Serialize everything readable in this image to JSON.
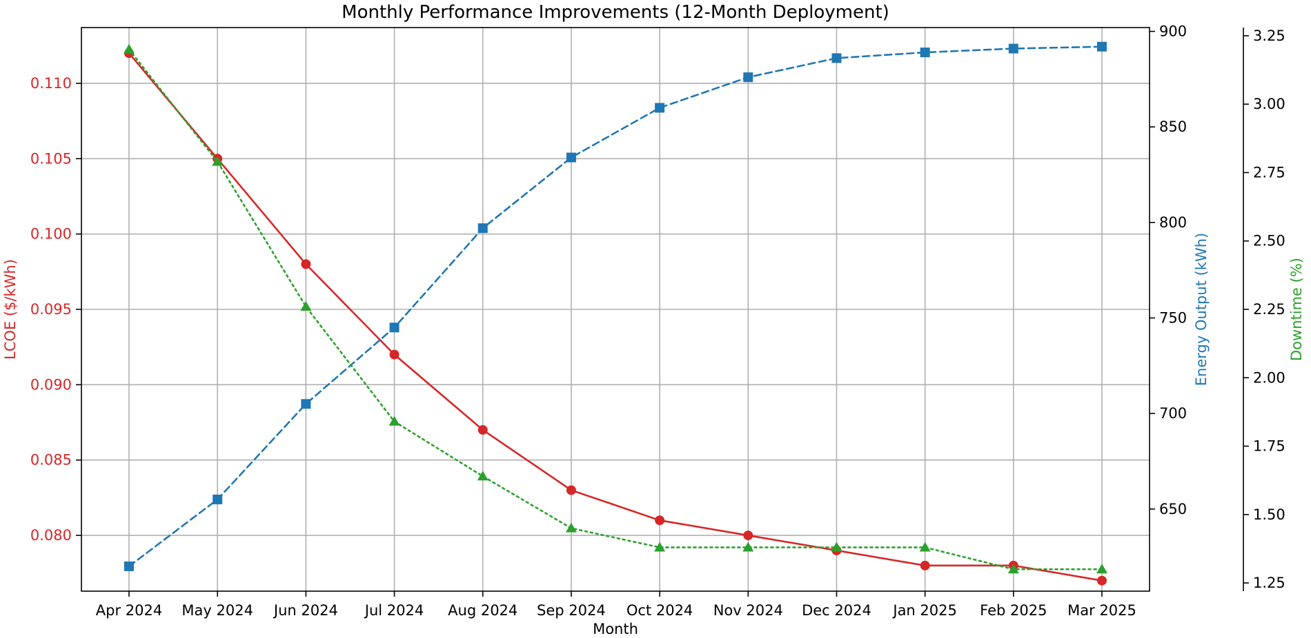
{
  "chart_data": {
    "type": "line",
    "title": "Monthly Performance Improvements (12-Month Deployment)",
    "xlabel": "Month",
    "categories": [
      "Apr 2024",
      "May 2024",
      "Jun 2024",
      "Jul 2024",
      "Aug 2024",
      "Sep 2024",
      "Oct 2024",
      "Nov 2024",
      "Dec 2024",
      "Jan 2025",
      "Feb 2025",
      "Mar 2025"
    ],
    "grid": true,
    "axes": {
      "left": {
        "label": "LCOE ($/kWh)",
        "color": "#d62728",
        "range": [
          0.0763,
          0.1137
        ],
        "ticks": [
          0.08,
          0.085,
          0.09,
          0.095,
          0.1,
          0.105,
          0.11
        ],
        "tick_labels": [
          "0.080",
          "0.085",
          "0.090",
          "0.095",
          "0.100",
          "0.105",
          "0.110"
        ]
      },
      "right1": {
        "label": "Energy Output (kWh)",
        "color": "#1f77b4",
        "range": [
          607,
          902
        ],
        "ticks": [
          650,
          700,
          750,
          800,
          850,
          900
        ],
        "tick_labels": [
          "650",
          "700",
          "750",
          "800",
          "850",
          "900"
        ]
      },
      "right2": {
        "label": "Downtime (%)",
        "color": "#2ca02c",
        "range": [
          1.22,
          3.28
        ],
        "ticks": [
          1.25,
          1.5,
          1.75,
          2.0,
          2.25,
          2.5,
          2.75,
          3.0,
          3.25
        ],
        "tick_labels": [
          "1.25",
          "1.50",
          "1.75",
          "2.00",
          "2.25",
          "2.50",
          "2.75",
          "3.00",
          "3.25"
        ]
      }
    },
    "series": [
      {
        "name": "LCOE ($/kWh)",
        "axis": "left",
        "color": "#d62728",
        "marker": "circle",
        "linestyle": "solid",
        "values": [
          0.112,
          0.105,
          0.098,
          0.092,
          0.087,
          0.083,
          0.081,
          0.08,
          0.079,
          0.078,
          0.078,
          0.077
        ]
      },
      {
        "name": "Energy Output (kWh)",
        "axis": "right1",
        "color": "#1f77b4",
        "marker": "square",
        "linestyle": "dashed",
        "values": [
          620,
          655,
          705,
          745,
          797,
          834,
          860,
          876,
          886,
          889,
          891,
          892
        ]
      },
      {
        "name": "Downtime (%)",
        "axis": "right2",
        "color": "#2ca02c",
        "marker": "triangle",
        "linestyle": "dotted",
        "values": [
          3.2,
          2.79,
          2.26,
          1.84,
          1.64,
          1.45,
          1.38,
          1.38,
          1.38,
          1.38,
          1.3,
          1.3
        ]
      }
    ]
  }
}
